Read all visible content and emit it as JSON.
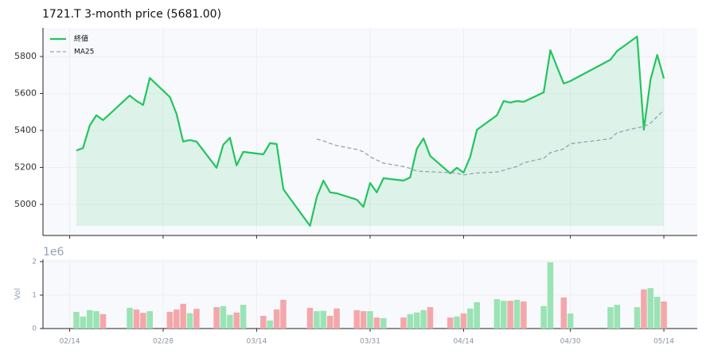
{
  "chart_data": [
    {
      "type": "line",
      "title": "1721.T  3-month price (5681.00)",
      "legend": "upper left",
      "grid": true,
      "x": [
        "02/15",
        "02/16",
        "02/17",
        "02/18",
        "02/19",
        "02/23",
        "02/24",
        "02/25",
        "02/26",
        "03/01",
        "03/02",
        "03/03",
        "03/04",
        "03/05",
        "03/08",
        "03/09",
        "03/10",
        "03/11",
        "03/12",
        "03/15",
        "03/16",
        "03/17",
        "03/18",
        "03/22",
        "03/23",
        "03/24",
        "03/25",
        "03/26",
        "03/29",
        "03/30",
        "03/31",
        "04/01",
        "04/02",
        "04/05",
        "04/06",
        "04/07",
        "04/08",
        "04/09",
        "04/12",
        "04/13",
        "04/14",
        "04/15",
        "04/16",
        "04/19",
        "04/20",
        "04/21",
        "04/22",
        "04/23",
        "04/26",
        "04/27",
        "04/29",
        "04/30",
        "05/06",
        "05/07",
        "05/10",
        "05/11",
        "05/12",
        "05/13",
        "05/14"
      ],
      "xlim": [
        "02/10",
        "05/19"
      ],
      "xticks": [
        "02/14",
        "02/28",
        "03/14",
        "03/31",
        "04/14",
        "04/30",
        "05/14"
      ],
      "ylim": [
        4832,
        5955
      ],
      "yticks": [
        5000,
        5200,
        5400,
        5600,
        5800
      ],
      "series": [
        {
          "name": "終値",
          "color": "#22c55e",
          "fill": true,
          "values": [
            5292,
            5305,
            5426,
            5482,
            5456,
            5589,
            5560,
            5538,
            5684,
            5581,
            5490,
            5340,
            5348,
            5340,
            5198,
            5323,
            5361,
            5211,
            5284,
            5271,
            5331,
            5327,
            5082,
            4884,
            5039,
            5129,
            5065,
            5060,
            5026,
            4987,
            5116,
            5065,
            5142,
            5129,
            5146,
            5301,
            5357,
            5262,
            5168,
            5198,
            5172,
            5258,
            5404,
            5482,
            5559,
            5551,
            5559,
            5555,
            5606,
            5834,
            5654,
            5667,
            5783,
            5830,
            5908,
            5404,
            5675,
            5809,
            5681
          ]
        },
        {
          "name": "MA25",
          "color": "#94a3b8",
          "dashed": true,
          "values": [
            null,
            null,
            null,
            null,
            null,
            null,
            null,
            null,
            null,
            null,
            null,
            null,
            null,
            null,
            null,
            null,
            null,
            null,
            null,
            null,
            null,
            null,
            null,
            null,
            5353,
            5344,
            5330,
            5318,
            5297,
            5285,
            5258,
            5240,
            5223,
            5205,
            5195,
            5180,
            5178,
            5176,
            5172,
            5168,
            5160,
            5165,
            5170,
            5175,
            5185,
            5195,
            5205,
            5225,
            5250,
            5280,
            5300,
            5328,
            5355,
            5388,
            5415,
            5420,
            5440,
            5475,
            5510
          ]
        }
      ]
    },
    {
      "type": "bar",
      "ylabel": "Vol",
      "offset_label": "1e6",
      "grid": true,
      "up_color": "#9ae3b4",
      "down_color": "#f4a7aa",
      "x": [
        "02/15",
        "02/16",
        "02/17",
        "02/18",
        "02/19",
        "02/23",
        "02/24",
        "02/25",
        "02/26",
        "03/01",
        "03/02",
        "03/03",
        "03/04",
        "03/05",
        "03/08",
        "03/09",
        "03/10",
        "03/11",
        "03/12",
        "03/15",
        "03/16",
        "03/17",
        "03/18",
        "03/22",
        "03/23",
        "03/24",
        "03/25",
        "03/26",
        "03/29",
        "03/30",
        "03/31",
        "04/01",
        "04/02",
        "04/05",
        "04/06",
        "04/07",
        "04/08",
        "04/09",
        "04/12",
        "04/13",
        "04/14",
        "04/15",
        "04/16",
        "04/19",
        "04/20",
        "04/21",
        "04/22",
        "04/23",
        "04/26",
        "04/27",
        "04/29",
        "04/30",
        "05/06",
        "05/07",
        "05/10",
        "05/11",
        "05/12",
        "05/13",
        "05/14"
      ],
      "xlim": [
        "02/10",
        "05/19"
      ],
      "xticks": [
        "02/14",
        "02/28",
        "03/14",
        "03/31",
        "04/14",
        "04/30",
        "05/14"
      ],
      "ylim": [
        0,
        2.07
      ],
      "yticks": [
        0,
        1,
        2
      ],
      "values": [
        0.5,
        0.36,
        0.55,
        0.52,
        0.43,
        0.62,
        0.57,
        0.47,
        0.52,
        0.5,
        0.57,
        0.74,
        0.46,
        0.59,
        0.64,
        0.67,
        0.41,
        0.48,
        0.71,
        0.38,
        0.24,
        0.57,
        0.86,
        0.62,
        0.52,
        0.53,
        0.38,
        0.6,
        0.55,
        0.52,
        0.52,
        0.33,
        0.31,
        0.33,
        0.43,
        0.48,
        0.55,
        0.64,
        0.33,
        0.36,
        0.45,
        0.6,
        0.79,
        0.88,
        0.83,
        0.83,
        0.86,
        0.81,
        0.67,
        1.98,
        0.93,
        0.45,
        0.64,
        0.71,
        0.64,
        1.17,
        1.21,
        0.95,
        0.81
      ]
    }
  ]
}
